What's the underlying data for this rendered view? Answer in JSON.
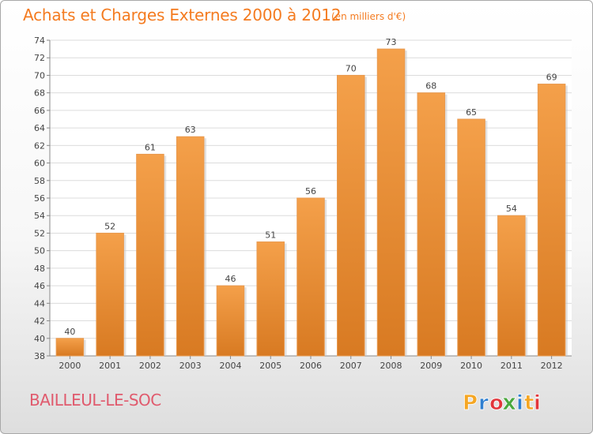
{
  "title": "Achats et Charges Externes 2000 à 2012",
  "unit_note": "(en milliers d'€)",
  "commune": "BAILLEUL-LE-SOC",
  "logo": {
    "text": "Proxiti",
    "letters": [
      "P",
      "r",
      "o",
      "x",
      "i",
      "t",
      "i"
    ],
    "colors": [
      "#f5a623",
      "#2f7fd0",
      "#e2353b",
      "#4aa83e",
      "#2f7fd0",
      "#f5a623",
      "#e2353b"
    ]
  },
  "chart_data": {
    "type": "bar",
    "categories": [
      "2000",
      "2001",
      "2002",
      "2003",
      "2004",
      "2005",
      "2006",
      "2007",
      "2008",
      "2009",
      "2010",
      "2011",
      "2012"
    ],
    "values": [
      40,
      52,
      61,
      63,
      46,
      51,
      56,
      70,
      73,
      68,
      65,
      54,
      69
    ],
    "ylim": [
      38,
      74
    ],
    "yticks": [
      38,
      40,
      42,
      44,
      46,
      48,
      50,
      52,
      54,
      56,
      58,
      60,
      62,
      64,
      66,
      68,
      70,
      72,
      74
    ],
    "grid": true,
    "bar_color": "#f4a04a",
    "bar_color_dark": "#d87a22",
    "show_value_labels": true
  }
}
